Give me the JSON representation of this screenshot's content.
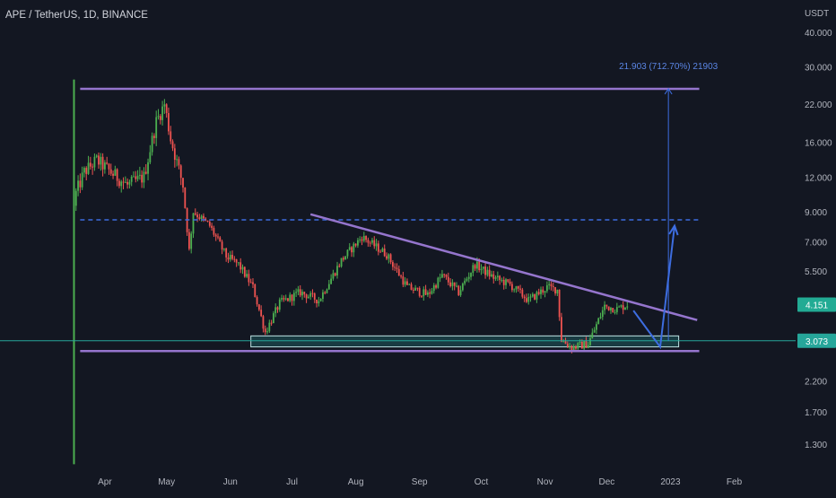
{
  "header": {
    "title": "APE / TetherUS, 1D, BINANCE"
  },
  "colors": {
    "background": "#131722",
    "up": "#26a69a",
    "up_bright": "#4caf50",
    "down": "#ef5350",
    "purple_line": "#9575cd",
    "blue_line": "#3d6de0",
    "target_text": "#5b86e5",
    "support_box": "#1f5a5c",
    "support_edge": "#bfe4e4",
    "hline_green": "#26a69a",
    "axis_text": "#b2b5be",
    "last_price_bg": "#22ab94",
    "current_price_bg": "#26a69a"
  },
  "chart_data": {
    "type": "candlestick",
    "title": "APE / TetherUS, 1D, BINANCE",
    "y_axis_unit": "USDT",
    "y_scale": "log",
    "ylim": [
      1.1,
      45
    ],
    "y_ticks": [
      "40.000",
      "30.000",
      "22.000",
      "16.000",
      "12.000",
      "9.000",
      "7.000",
      "5.500",
      "4.151",
      "3.073",
      "2.200",
      "1.700",
      "1.300"
    ],
    "x_ticks": [
      "Apr",
      "May",
      "Jun",
      "Jul",
      "Aug",
      "Sep",
      "Oct",
      "Nov",
      "Dec",
      "2023",
      "Feb"
    ],
    "x_range": [
      "2022-03-17",
      "2023-02-10"
    ],
    "last_price": "4.151",
    "horizontal_level_price": "3.073",
    "price_path": [
      {
        "date": "2022-03-17",
        "price": 1.1
      },
      {
        "date": "2022-03-18",
        "price": 10.5
      },
      {
        "date": "2022-03-22",
        "price": 12.5
      },
      {
        "date": "2022-03-28",
        "price": 13.8
      },
      {
        "date": "2022-04-05",
        "price": 12.3
      },
      {
        "date": "2022-04-12",
        "price": 11.2
      },
      {
        "date": "2022-04-20",
        "price": 12.0
      },
      {
        "date": "2022-04-26",
        "price": 19.0
      },
      {
        "date": "2022-04-30",
        "price": 22.0
      },
      {
        "date": "2022-05-03",
        "price": 16.5
      },
      {
        "date": "2022-05-09",
        "price": 11.2
      },
      {
        "date": "2022-05-12",
        "price": 6.5
      },
      {
        "date": "2022-05-14",
        "price": 9.0
      },
      {
        "date": "2022-05-22",
        "price": 8.0
      },
      {
        "date": "2022-05-30",
        "price": 6.2
      },
      {
        "date": "2022-06-05",
        "price": 5.8
      },
      {
        "date": "2022-06-12",
        "price": 4.8
      },
      {
        "date": "2022-06-18",
        "price": 3.3
      },
      {
        "date": "2022-06-25",
        "price": 4.2
      },
      {
        "date": "2022-07-05",
        "price": 4.6
      },
      {
        "date": "2022-07-14",
        "price": 4.3
      },
      {
        "date": "2022-07-25",
        "price": 6.0
      },
      {
        "date": "2022-08-04",
        "price": 7.3
      },
      {
        "date": "2022-08-16",
        "price": 6.3
      },
      {
        "date": "2022-08-26",
        "price": 4.8
      },
      {
        "date": "2022-09-05",
        "price": 4.5
      },
      {
        "date": "2022-09-12",
        "price": 5.3
      },
      {
        "date": "2022-09-20",
        "price": 4.6
      },
      {
        "date": "2022-09-28",
        "price": 5.8
      },
      {
        "date": "2022-10-07",
        "price": 5.2
      },
      {
        "date": "2022-10-15",
        "price": 4.9
      },
      {
        "date": "2022-10-24",
        "price": 4.3
      },
      {
        "date": "2022-11-02",
        "price": 4.8
      },
      {
        "date": "2022-11-07",
        "price": 4.7
      },
      {
        "date": "2022-11-09",
        "price": 3.1
      },
      {
        "date": "2022-11-14",
        "price": 2.9
      },
      {
        "date": "2022-11-22",
        "price": 3.0
      },
      {
        "date": "2022-11-30",
        "price": 4.1
      },
      {
        "date": "2022-12-06",
        "price": 4.0
      },
      {
        "date": "2022-12-11",
        "price": 4.151
      }
    ],
    "initial_spike": {
      "date": "2022-03-17",
      "low": 1.1,
      "high": 27.0
    },
    "drawings": {
      "upper_resistance": {
        "from": {
          "date": "2022-03-20",
          "price": 25.0
        },
        "to": {
          "date": "2023-01-15",
          "price": 25.0
        }
      },
      "lower_support": {
        "from": {
          "date": "2022-03-20",
          "price": 2.82
        },
        "to": {
          "date": "2023-01-15",
          "price": 2.82
        }
      },
      "dashed_level": {
        "from": {
          "date": "2022-03-20",
          "price": 8.4
        },
        "to": {
          "date": "2023-01-15",
          "price": 8.4
        }
      },
      "descending_trendline": {
        "from": {
          "date": "2022-07-10",
          "price": 8.8
        },
        "to": {
          "date": "2023-01-14",
          "price": 3.65
        }
      },
      "support_zone": {
        "from_date": "2022-06-11",
        "to_date": "2023-01-05",
        "top": 3.2,
        "bottom": 2.92
      },
      "projection_path": [
        {
          "date": "2022-12-14",
          "price": 3.95
        },
        {
          "date": "2022-12-27",
          "price": 2.92
        },
        {
          "date": "2023-01-03",
          "price": 8.0
        }
      ],
      "target_measure": {
        "date": "2022-12-31",
        "from_price": 3.073,
        "to_price": 25.0,
        "label": "21.903 (712.70%) 21903"
      }
    }
  }
}
